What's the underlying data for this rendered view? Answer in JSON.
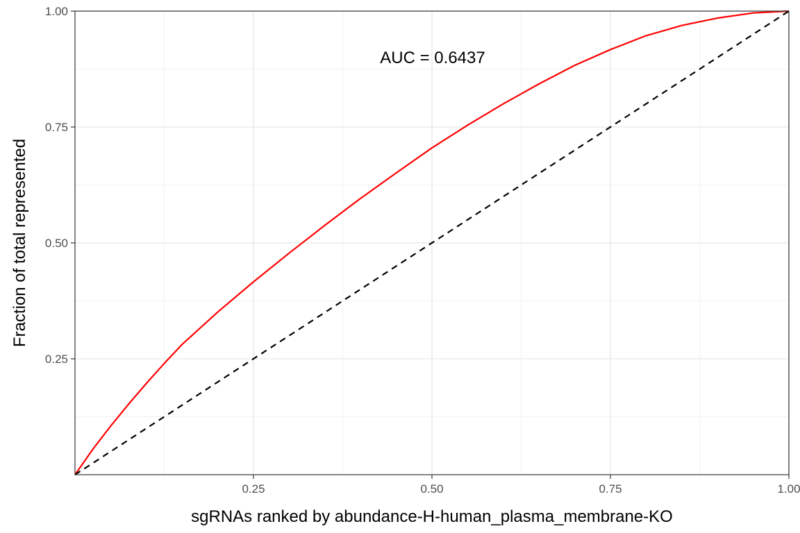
{
  "chart_data": {
    "type": "line",
    "title": "",
    "xlabel": "sgRNAs ranked by abundance-H-human_plasma_membrane-KO",
    "ylabel": "Fraction of total represented",
    "xlim": [
      0,
      1
    ],
    "ylim": [
      0,
      1
    ],
    "x_ticks": [
      0.25,
      0.5,
      0.75,
      1.0
    ],
    "x_tick_labels": [
      "0.25",
      "0.50",
      "0.75",
      "1.00"
    ],
    "y_ticks": [
      0.25,
      0.5,
      0.75,
      1.0
    ],
    "y_tick_labels": [
      "0.25",
      "0.50",
      "0.75",
      "1.00"
    ],
    "grid": true,
    "annotation": {
      "text": "AUC = 0.6437",
      "x": 0.5,
      "y": 0.9
    },
    "series": [
      {
        "style": "solid",
        "color": "#ff0000",
        "x": [
          0,
          0.025,
          0.05,
          0.075,
          0.1,
          0.125,
          0.15,
          0.2,
          0.25,
          0.3,
          0.35,
          0.4,
          0.45,
          0.5,
          0.55,
          0.6,
          0.65,
          0.7,
          0.75,
          0.8,
          0.85,
          0.9,
          0.95,
          1.0
        ],
        "y": [
          0,
          0.055,
          0.105,
          0.152,
          0.197,
          0.24,
          0.281,
          0.351,
          0.416,
          0.478,
          0.538,
          0.596,
          0.651,
          0.705,
          0.754,
          0.8,
          0.843,
          0.883,
          0.917,
          0.947,
          0.969,
          0.985,
          0.996,
          1.0
        ]
      },
      {
        "style": "dashed",
        "color": "#000000",
        "x": [
          0,
          1
        ],
        "y": [
          0,
          1
        ]
      }
    ]
  }
}
